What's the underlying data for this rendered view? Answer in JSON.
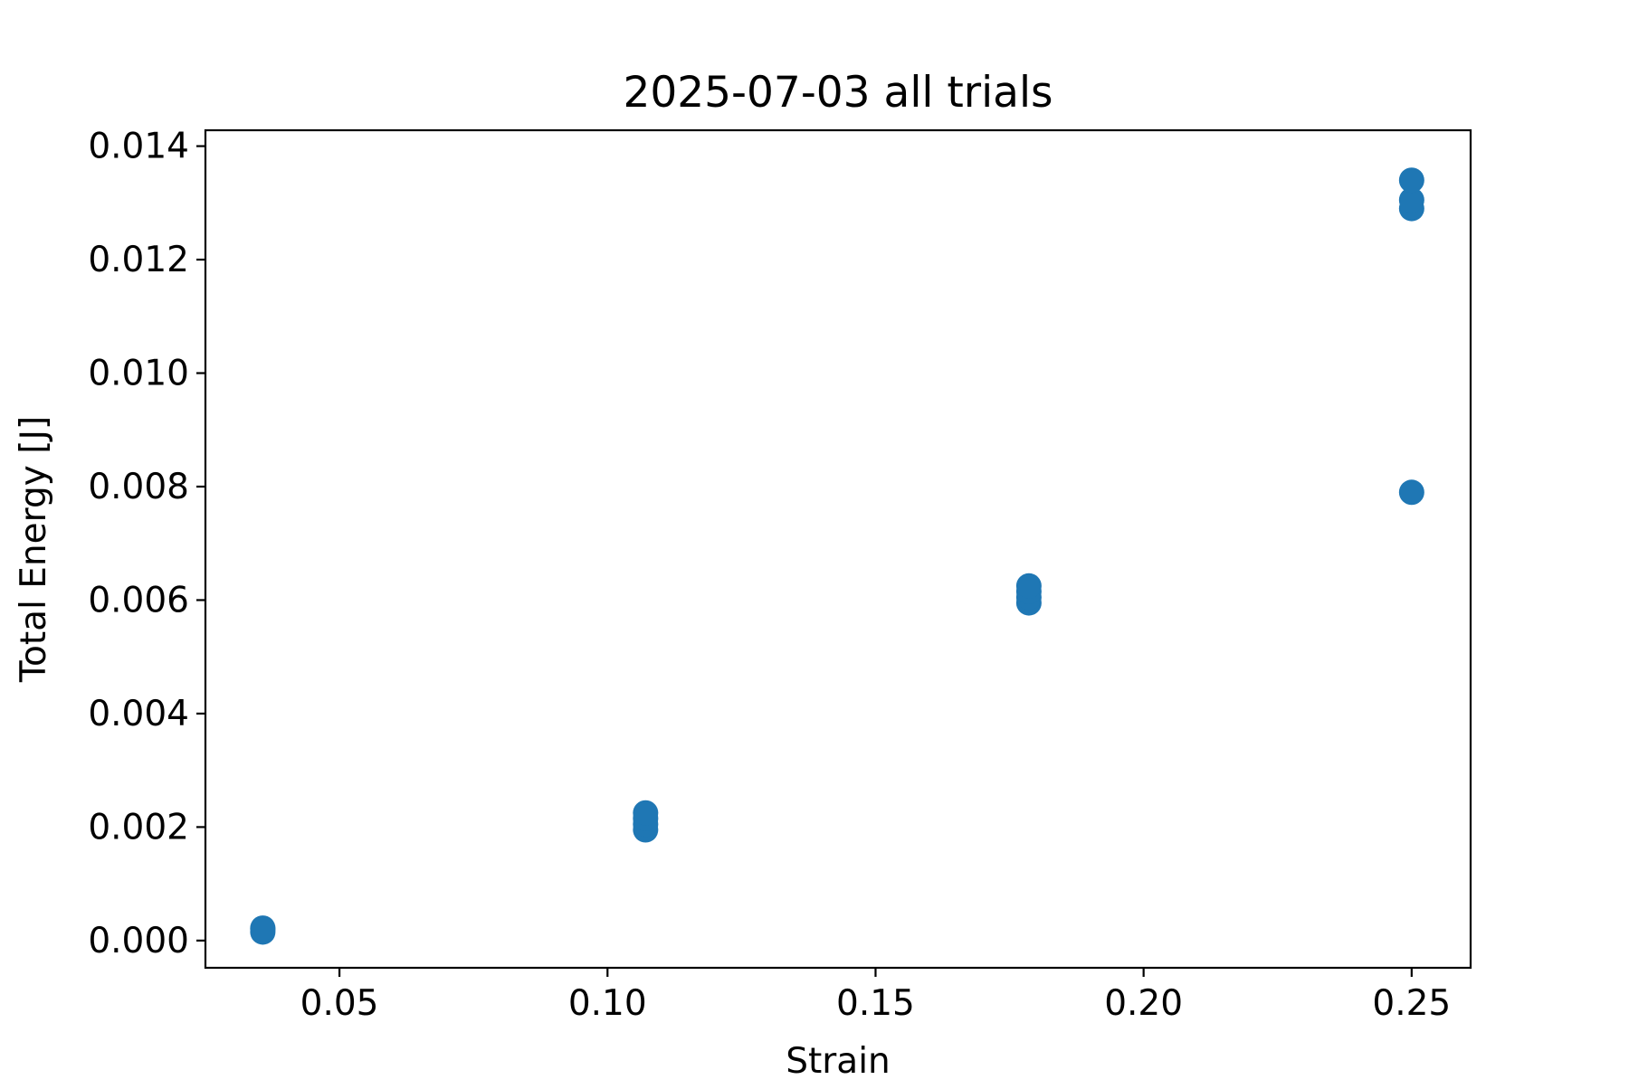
{
  "chart_data": {
    "type": "scatter",
    "title": "2025-07-03 all trials",
    "xlabel": "Strain",
    "ylabel": "Total Energy [J]",
    "xlim": [
      0.025,
      0.261
    ],
    "ylim": [
      -0.00048,
      0.01428
    ],
    "x_ticks": [
      0.05,
      0.1,
      0.15,
      0.2,
      0.25
    ],
    "x_tick_labels": [
      "0.05",
      "0.10",
      "0.15",
      "0.20",
      "0.25"
    ],
    "y_ticks": [
      0.0,
      0.002,
      0.004,
      0.006,
      0.008,
      0.01,
      0.012,
      0.014
    ],
    "y_tick_labels": [
      "0.000",
      "0.002",
      "0.004",
      "0.006",
      "0.008",
      "0.010",
      "0.012",
      "0.014"
    ],
    "grid": false,
    "marker_color": "#1f77b4",
    "series": [
      {
        "name": "all trials",
        "points": [
          {
            "x": 0.0357,
            "y": 0.00015
          },
          {
            "x": 0.0357,
            "y": 0.0002
          },
          {
            "x": 0.0357,
            "y": 0.00022
          },
          {
            "x": 0.1071,
            "y": 0.00195
          },
          {
            "x": 0.1071,
            "y": 0.00205
          },
          {
            "x": 0.1071,
            "y": 0.00215
          },
          {
            "x": 0.1071,
            "y": 0.00225
          },
          {
            "x": 0.1786,
            "y": 0.00595
          },
          {
            "x": 0.1786,
            "y": 0.00605
          },
          {
            "x": 0.1786,
            "y": 0.00615
          },
          {
            "x": 0.1786,
            "y": 0.00625
          },
          {
            "x": 0.25,
            "y": 0.0079
          },
          {
            "x": 0.25,
            "y": 0.0129
          },
          {
            "x": 0.25,
            "y": 0.01305
          },
          {
            "x": 0.25,
            "y": 0.0134
          }
        ]
      }
    ]
  }
}
